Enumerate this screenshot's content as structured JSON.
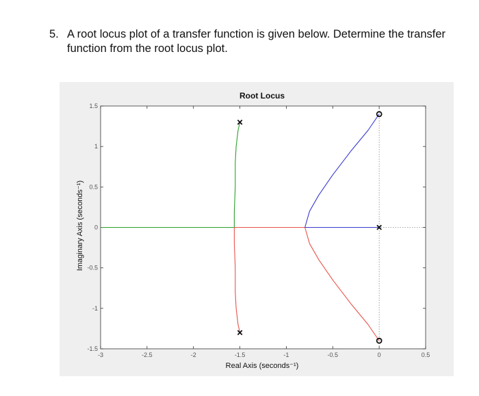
{
  "question": {
    "number": "5.",
    "text": "A root locus plot of a transfer function is given below.  Determine the transfer function from the root locus plot."
  },
  "chart_data": {
    "type": "line",
    "title": "Root Locus",
    "xlabel": "Real Axis (seconds⁻¹)",
    "ylabel": "Imaginary Axis (seconds⁻¹)",
    "xlim": [
      -3,
      0.5
    ],
    "ylim": [
      -1.5,
      1.5
    ],
    "xticks": [
      -3,
      -2.5,
      -2,
      -1.5,
      -1,
      -0.5,
      0,
      0.5
    ],
    "xtick_labels": [
      "-3",
      "-2.5",
      "-2",
      "-1.5",
      "-1",
      "-0.5",
      "0",
      "0.5"
    ],
    "yticks": [
      -1.5,
      -1,
      -0.5,
      0,
      0.5,
      1,
      1.5
    ],
    "ytick_labels": [
      "-1.5",
      "-1",
      "-0.5",
      "0",
      "0.5",
      "1",
      "1.5"
    ],
    "poles": [
      {
        "re": -1.5,
        "im": 1.3
      },
      {
        "re": -1.5,
        "im": -1.3
      },
      {
        "re": 0,
        "im": 0
      }
    ],
    "zeros": [
      {
        "re": 0,
        "im": 1.4
      },
      {
        "re": 0,
        "im": -1.4
      }
    ],
    "series": [
      {
        "color": "#2ca02c",
        "segments": [
          [
            [
              -1.5,
              1.3
            ],
            [
              -1.52,
              1.2
            ],
            [
              -1.54,
              1.0
            ],
            [
              -1.55,
              0.8
            ],
            [
              -1.55,
              0.5
            ],
            [
              -1.56,
              0.2
            ],
            [
              -1.56,
              0
            ]
          ],
          [
            [
              -1.56,
              0
            ],
            [
              -3,
              0
            ]
          ]
        ]
      },
      {
        "color": "#e8534a",
        "segments": [
          [
            [
              -1.5,
              -1.3
            ],
            [
              -1.52,
              -1.2
            ],
            [
              -1.54,
              -1.0
            ],
            [
              -1.55,
              -0.8
            ],
            [
              -1.55,
              -0.5
            ],
            [
              -1.56,
              -0.2
            ],
            [
              -1.56,
              0
            ]
          ],
          [
            [
              -1.56,
              0
            ],
            [
              -0.8,
              0
            ]
          ],
          [
            [
              -0.8,
              0
            ],
            [
              -0.75,
              -0.2
            ],
            [
              -0.65,
              -0.4
            ],
            [
              -0.5,
              -0.65
            ],
            [
              -0.3,
              -0.95
            ],
            [
              -0.12,
              -1.2
            ],
            [
              0,
              -1.4
            ]
          ]
        ]
      },
      {
        "color": "#3a3ad0",
        "segments": [
          [
            [
              0,
              0
            ],
            [
              -0.8,
              0
            ]
          ],
          [
            [
              -0.8,
              0
            ],
            [
              -0.75,
              0.2
            ],
            [
              -0.65,
              0.4
            ],
            [
              -0.5,
              0.65
            ],
            [
              -0.3,
              0.95
            ],
            [
              -0.12,
              1.2
            ],
            [
              0,
              1.4
            ]
          ]
        ]
      }
    ],
    "grid": false
  }
}
